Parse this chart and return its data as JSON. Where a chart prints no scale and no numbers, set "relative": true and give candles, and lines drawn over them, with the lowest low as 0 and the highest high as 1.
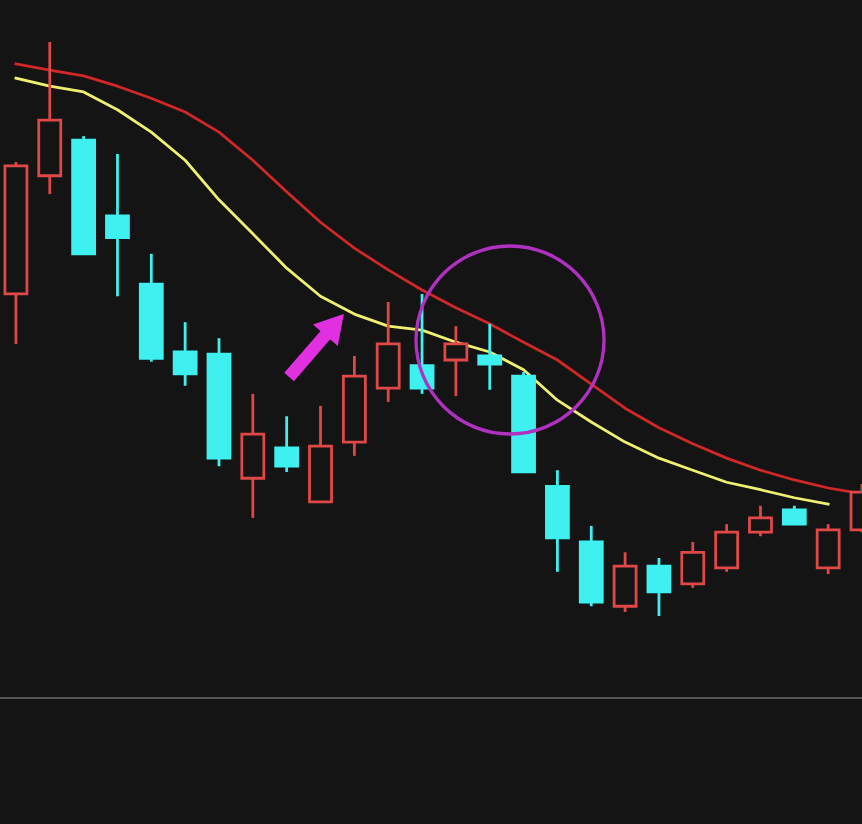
{
  "chart_data": {
    "type": "candlestick",
    "relative": true,
    "categories": [
      null,
      null,
      null,
      null,
      null,
      null,
      null,
      null,
      null,
      null,
      null,
      null,
      null,
      null,
      null,
      null,
      null,
      null,
      null,
      null,
      null,
      null,
      null,
      null,
      null,
      null
    ],
    "ohlc": [
      [
        0.561,
        0.791,
        0.474,
        0.784
      ],
      [
        0.767,
        1.0,
        0.735,
        0.864
      ],
      [
        0.829,
        0.836,
        0.631,
        0.631
      ],
      [
        0.697,
        0.805,
        0.557,
        0.659
      ],
      [
        0.578,
        0.631,
        0.443,
        0.449
      ],
      [
        0.46,
        0.512,
        0.401,
        0.422
      ],
      [
        0.456,
        0.484,
        0.261,
        0.275
      ],
      [
        0.24,
        0.387,
        0.171,
        0.317
      ],
      [
        0.293,
        0.348,
        0.251,
        0.261
      ],
      [
        0.199,
        0.366,
        0.199,
        0.296
      ],
      [
        0.303,
        0.453,
        0.279,
        0.418
      ],
      [
        0.397,
        0.547,
        0.373,
        0.474
      ],
      [
        0.436,
        0.561,
        0.387,
        0.397
      ],
      [
        0.446,
        0.505,
        0.383,
        0.474
      ],
      [
        0.453,
        0.509,
        0.394,
        0.439
      ],
      [
        0.418,
        0.425,
        0.251,
        0.251
      ],
      [
        0.226,
        0.254,
        0.077,
        0.136
      ],
      [
        0.129,
        0.157,
        0.017,
        0.024
      ],
      [
        0.017,
        0.111,
        0.007,
        0.087
      ],
      [
        0.087,
        0.101,
        0.0,
        0.042
      ],
      [
        0.056,
        0.129,
        0.049,
        0.111
      ],
      [
        0.084,
        0.16,
        0.077,
        0.146
      ],
      [
        0.146,
        0.192,
        0.139,
        0.171
      ],
      [
        0.185,
        0.192,
        0.16,
        0.16
      ],
      [
        0.084,
        0.16,
        0.073,
        0.15
      ],
      [
        0.15,
        0.23,
        0.146,
        0.216
      ]
    ],
    "colors": [
      "#e04848",
      "#e04848",
      "#3ef0f0",
      "#3ef0f0",
      "#3ef0f0",
      "#3ef0f0",
      "#3ef0f0",
      "#e04848",
      "#3ef0f0",
      "#e04848",
      "#e04848",
      "#e04848",
      "#3ef0f0",
      "#e04848",
      "#3ef0f0",
      "#3ef0f0",
      "#3ef0f0",
      "#3ef0f0",
      "#e04848",
      "#3ef0f0",
      "#e04848",
      "#e04848",
      "#e04848",
      "#3ef0f0",
      "#e04848",
      "#e04848"
    ],
    "series": [
      {
        "type": "line",
        "color": "#f0f070",
        "values": [
          0.937,
          0.923,
          0.913,
          0.882,
          0.843,
          0.794,
          0.725,
          0.666,
          0.606,
          0.557,
          0.526,
          0.505,
          0.498,
          0.477,
          0.46,
          0.429,
          0.376,
          0.338,
          0.303,
          0.275,
          0.254,
          0.233,
          0.22,
          0.206,
          0.195,
          null
        ]
      },
      {
        "type": "line",
        "color": "#d02828",
        "values": [
          0.962,
          0.951,
          0.941,
          0.923,
          0.902,
          0.878,
          0.843,
          0.794,
          0.739,
          0.686,
          0.641,
          0.603,
          0.568,
          0.537,
          0.509,
          0.477,
          0.446,
          0.404,
          0.362,
          0.328,
          0.3,
          0.275,
          0.254,
          0.237,
          0.223,
          0.213
        ]
      }
    ]
  }
}
